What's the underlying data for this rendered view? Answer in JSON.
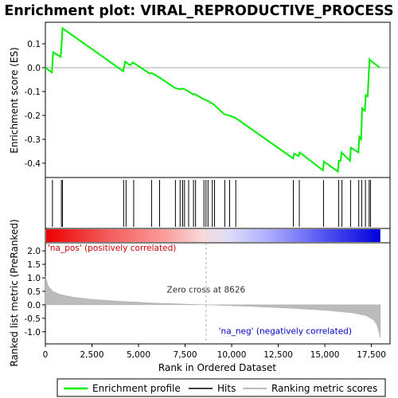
{
  "chart_data": {
    "type": "line",
    "title": "Enrichment plot: VIRAL_REPRODUCTIVE_PROCESS",
    "xlabel": "Rank in Ordered Dataset",
    "ylabel_top": "Enrichment score (ES)",
    "ylabel_bottom": "Ranked list metric (PreRanked)",
    "xlim": [
      0,
      18500
    ],
    "top_ylim": [
      -0.46,
      0.19
    ],
    "bottom_ylim": [
      -1.45,
      2.3
    ],
    "x_ticks": [
      0,
      2500,
      5000,
      7500,
      10000,
      12500,
      15000,
      17500
    ],
    "x_tick_labels": [
      "0",
      "2,500",
      "5,000",
      "7,500",
      "10,000",
      "12,500",
      "15,000",
      "17,500"
    ],
    "top_y_ticks": [
      0.1,
      0.0,
      -0.1,
      -0.2,
      -0.3,
      -0.4
    ],
    "top_y_tick_labels": [
      "0.1",
      "0.0",
      "-0.1",
      "-0.2",
      "-0.3",
      "-0.4"
    ],
    "bottom_y_ticks": [
      2.0,
      1.5,
      1.0,
      0.5,
      0.0,
      -0.5,
      -1.0
    ],
    "bottom_y_tick_labels": [
      "2.0",
      "1.5",
      "1.0",
      "0.5",
      "0.0",
      "-0.5",
      "-1.0"
    ],
    "series": [
      {
        "name": "Enrichment profile",
        "color": "#00ee00",
        "x": [
          0,
          350,
          420,
          820,
          880,
          920,
          4180,
          4280,
          4550,
          4700,
          5600,
          5700,
          6100,
          6950,
          7200,
          7350,
          7450,
          7650,
          7900,
          8050,
          8500,
          8600,
          8700,
          8950,
          9050,
          9600,
          9850,
          10200,
          13300,
          13350,
          13600,
          13650,
          14900,
          14950,
          15700,
          15750,
          15850,
          15900,
          16350,
          16400,
          16800,
          16850,
          16950,
          17000,
          17150,
          17200,
          17300,
          17350,
          17400,
          17450,
          17950
        ],
        "y": [
          0.0,
          -0.02,
          0.065,
          0.045,
          0.11,
          0.165,
          -0.015,
          0.025,
          0.01,
          0.022,
          -0.025,
          -0.022,
          -0.04,
          -0.085,
          -0.09,
          -0.088,
          -0.09,
          -0.098,
          -0.11,
          -0.112,
          -0.132,
          -0.135,
          -0.138,
          -0.15,
          -0.155,
          -0.195,
          -0.2,
          -0.21,
          -0.38,
          -0.36,
          -0.37,
          -0.355,
          -0.43,
          -0.393,
          -0.435,
          -0.39,
          -0.39,
          -0.355,
          -0.39,
          -0.335,
          -0.355,
          -0.29,
          -0.3,
          -0.17,
          -0.18,
          -0.115,
          -0.12,
          -0.04,
          0.035,
          0.03,
          0.0
        ]
      }
    ],
    "hits": [
      380,
      860,
      920,
      4200,
      4330,
      4740,
      5700,
      6130,
      6980,
      7230,
      7370,
      7470,
      7690,
      7950,
      8060,
      8510,
      8620,
      8730,
      8960,
      9080,
      9630,
      9890,
      10220,
      13310,
      13630,
      14930,
      15740,
      15920,
      16380,
      16820,
      16980,
      17180,
      17380,
      17450
    ],
    "metric_curve": {
      "x": [
        0,
        150,
        400,
        800,
        1500,
        2500,
        4000,
        6000,
        8626,
        11000,
        13000,
        15000,
        16500,
        17200,
        17600,
        17800,
        17900,
        17950,
        17980
      ],
      "y": [
        1.05,
        0.7,
        0.5,
        0.38,
        0.28,
        0.2,
        0.13,
        0.06,
        0.0,
        -0.06,
        -0.12,
        -0.2,
        -0.3,
        -0.4,
        -0.55,
        -0.75,
        -1.0,
        -1.15,
        -1.22
      ]
    },
    "zero_cross_label": "Zero cross at 8626",
    "zero_cross_x": 8626,
    "pos_label": "'na_pos' (positively correlated)",
    "neg_label": "'na_neg' (negatively correlated)",
    "pos_color": "#cc0000",
    "neg_color": "#0000cc",
    "legend": [
      {
        "label": "Enrichment profile",
        "color": "#00ee00"
      },
      {
        "label": "Hits",
        "color": "#000000"
      },
      {
        "label": "Ranking metric scores",
        "color": "#bbbbbb"
      }
    ]
  }
}
